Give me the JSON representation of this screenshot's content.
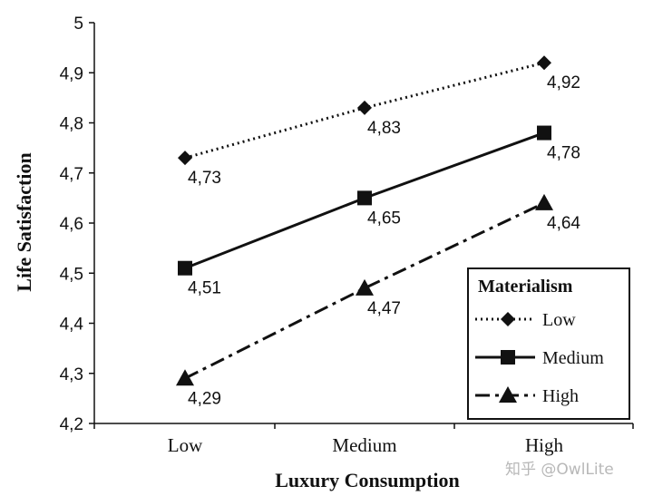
{
  "chart_data": {
    "type": "line",
    "categories": [
      "Low",
      "Medium",
      "High"
    ],
    "series": [
      {
        "name": "Low",
        "values": [
          4.73,
          4.83,
          4.92
        ],
        "labels": [
          "4,73",
          "4,83",
          "4,92"
        ],
        "marker": "diamond",
        "line_style": "dotted"
      },
      {
        "name": "Medium",
        "values": [
          4.51,
          4.65,
          4.78
        ],
        "labels": [
          "4,51",
          "4,65",
          "4,78"
        ],
        "marker": "square",
        "line_style": "solid"
      },
      {
        "name": "High",
        "values": [
          4.29,
          4.47,
          4.64
        ],
        "labels": [
          "4,29",
          "4,47",
          "4,64"
        ],
        "marker": "triangle",
        "line_style": "dash-dot"
      }
    ],
    "xlabel": "Luxury Consumption",
    "ylabel": "Life Satisfaction",
    "ylim": [
      4.2,
      5.0
    ],
    "yticks": [
      4.2,
      4.3,
      4.4,
      4.5,
      4.6,
      4.7,
      4.8,
      4.9,
      5.0
    ],
    "ytick_labels": [
      "4,2",
      "4,3",
      "4,4",
      "4,5",
      "4,6",
      "4,7",
      "4,8",
      "4,9",
      "5"
    ],
    "legend": {
      "title": "Materialism",
      "position": "bottom-right"
    },
    "grid": false
  },
  "watermark": "知乎 @OwlLite"
}
